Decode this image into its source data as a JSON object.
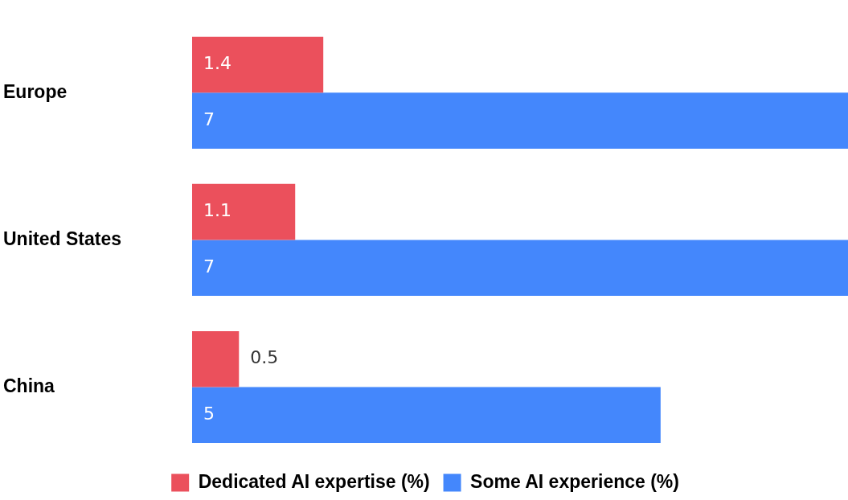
{
  "chart_data": {
    "type": "bar",
    "orientation": "horizontal",
    "categories": [
      "Europe",
      "United States",
      "China"
    ],
    "series": [
      {
        "name": "Dedicated AI expertise (%)",
        "color": "#eb505c",
        "values": [
          1.4,
          1.1,
          0.5
        ]
      },
      {
        "name": "Some AI experience (%)",
        "color": "#4487fc",
        "values": [
          7,
          7,
          5
        ]
      }
    ],
    "xlim": [
      0,
      7
    ],
    "data_labels": true,
    "tick_labels": "y",
    "legend": "bottom"
  }
}
